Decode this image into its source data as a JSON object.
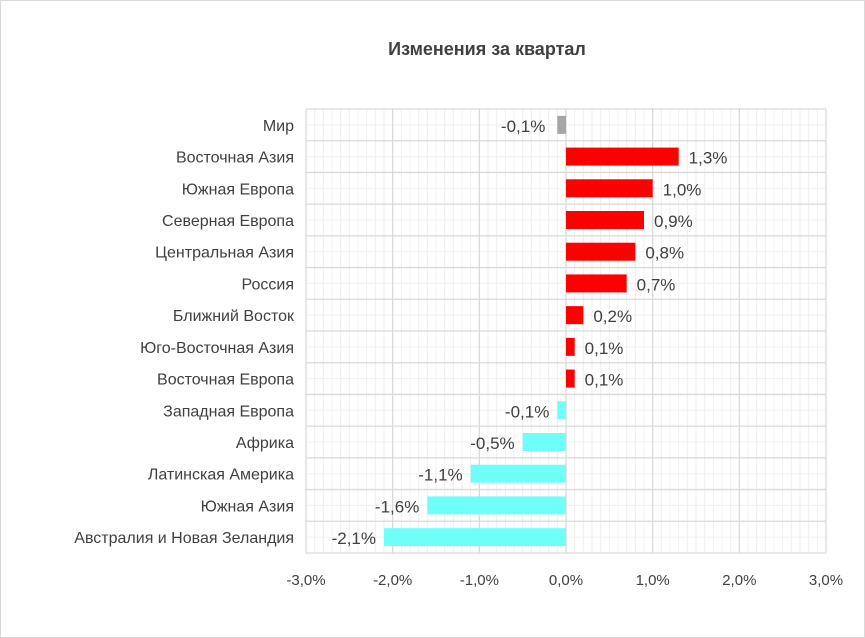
{
  "chart_data": {
    "type": "bar",
    "orientation": "horizontal",
    "title": "Изменения за квартал",
    "categories": [
      "Мир",
      "Восточная Азия",
      "Южная Европа",
      "Северная Европа",
      "Центральная Азия",
      "Россия",
      "Ближний Восток",
      "Юго-Восточная Азия",
      "Восточная Европа",
      "Западная Европа",
      "Африка",
      "Латинская Америка",
      "Южная Азия",
      "Австралия и Новая Зеландия"
    ],
    "values": [
      -0.1,
      1.3,
      1.0,
      0.9,
      0.8,
      0.7,
      0.2,
      0.1,
      0.1,
      -0.1,
      -0.5,
      -1.1,
      -1.6,
      -2.1
    ],
    "data_labels": [
      "-0,1%",
      "1,3%",
      "1,0%",
      "0,9%",
      "0,8%",
      "0,7%",
      "0,2%",
      "0,1%",
      "0,1%",
      "-0,1%",
      "-0,5%",
      "-1,1%",
      "-1,6%",
      "-2,1%"
    ],
    "xlim": [
      -3,
      3
    ],
    "x_ticks": [
      -3,
      -2,
      -1,
      0,
      1,
      2,
      3
    ],
    "x_tick_labels": [
      "-3,0%",
      "-2,0%",
      "-1,0%",
      "0,0%",
      "1,0%",
      "2,0%",
      "3,0%"
    ],
    "grid": true,
    "legend": "none",
    "colors": {
      "world": "#A6A6A6",
      "positive": "#FF0000",
      "negative": "#70FFF8"
    }
  }
}
